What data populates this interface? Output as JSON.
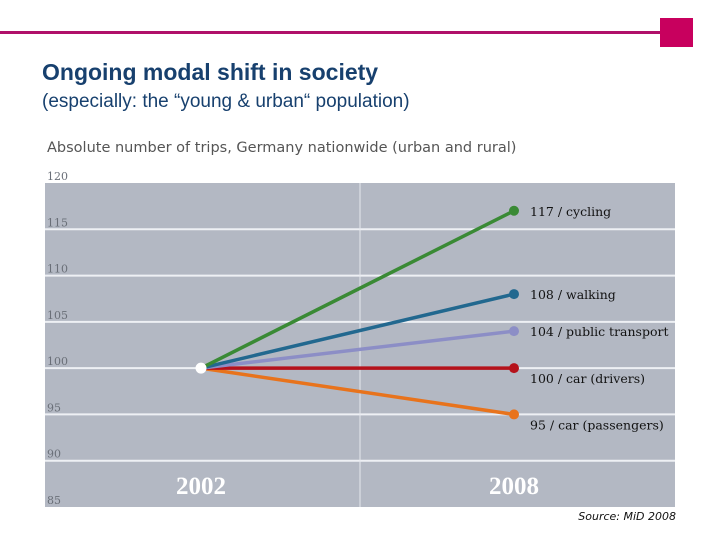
{
  "header": {
    "accent_color": "#c8005e",
    "title": "Ongoing modal shift in society",
    "subtitle": "(especially: the “young & urban“ population)"
  },
  "chart_data": {
    "type": "line",
    "title": "Absolute number of trips, Germany nationwide (urban and rural)",
    "x": [
      "2002",
      "2008"
    ],
    "xlabel": "",
    "ylabel": "",
    "ylim": [
      85,
      120
    ],
    "yticks": [
      120,
      115,
      110,
      105,
      100,
      95,
      90,
      85
    ],
    "grid": true,
    "background_color": "#b3b8c3",
    "start_point": {
      "x": "2002",
      "value": 100,
      "color": "#ffffff"
    },
    "series": [
      {
        "name": "cycling",
        "label": "117 / cycling",
        "values": [
          100,
          117
        ],
        "color": "#3a8a35"
      },
      {
        "name": "walking",
        "label": "108 / walking",
        "values": [
          100,
          108
        ],
        "color": "#22688f"
      },
      {
        "name": "public transport",
        "label": "104 / public transport",
        "values": [
          100,
          104
        ],
        "color": "#8c8ec6"
      },
      {
        "name": "car (drivers)",
        "label": "100 / car (drivers)",
        "values": [
          100,
          100
        ],
        "color": "#b5121b"
      },
      {
        "name": "car (passengers)",
        "label": "95 / car (passengers)",
        "values": [
          100,
          95
        ],
        "color": "#e8731c"
      }
    ],
    "source": "Source: MiD 2008"
  }
}
